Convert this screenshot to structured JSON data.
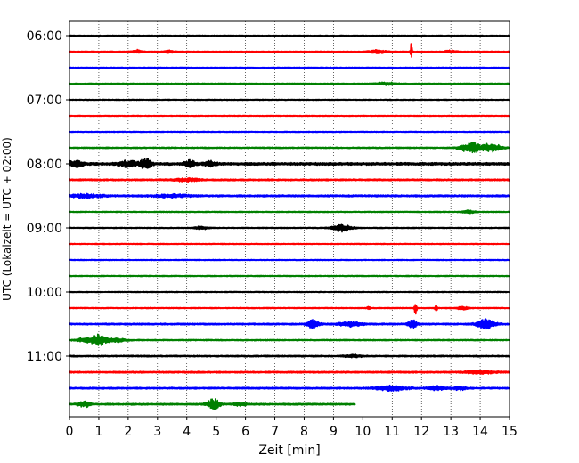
{
  "chart_data": {
    "type": "line",
    "title": "",
    "xlabel": "Zeit  [min]",
    "ylabel": "UTC (Lokalzeit = UTC + 02:00)",
    "xlim": [
      0,
      15
    ],
    "x_ticks": [
      "0",
      "1",
      "2",
      "3",
      "4",
      "5",
      "6",
      "7",
      "8",
      "9",
      "10",
      "11",
      "12",
      "13",
      "14",
      "15"
    ],
    "y_tick_labels": [
      "06:00",
      "07:00",
      "08:00",
      "09:00",
      "10:00",
      "11:00"
    ],
    "grid": "vertical dotted",
    "trace_interval_minutes": 15,
    "colors": [
      "#000000",
      "#ff0000",
      "#0000ff",
      "#008000"
    ],
    "series": [
      {
        "start": "06:00",
        "end_min": 15,
        "amp": 0.5,
        "events": []
      },
      {
        "start": "06:15",
        "end_min": 15,
        "amp": 0.55,
        "events": [
          {
            "t": 2.3,
            "a": 2.0,
            "w": 0.15
          },
          {
            "t": 3.4,
            "a": 1.6,
            "w": 0.15
          },
          {
            "t": 10.5,
            "a": 1.8,
            "w": 0.3
          },
          {
            "t": 11.65,
            "a": 10,
            "w": 0.03
          },
          {
            "t": 13.0,
            "a": 1.6,
            "w": 0.2
          }
        ]
      },
      {
        "start": "06:30",
        "end_min": 15,
        "amp": 0.55,
        "events": []
      },
      {
        "start": "06:45",
        "end_min": 15,
        "amp": 0.55,
        "events": [
          {
            "t": 10.8,
            "a": 1.6,
            "w": 0.3
          }
        ]
      },
      {
        "start": "07:00",
        "end_min": 15,
        "amp": 0.55,
        "events": []
      },
      {
        "start": "07:15",
        "end_min": 15,
        "amp": 0.5,
        "events": []
      },
      {
        "start": "07:30",
        "end_min": 15,
        "amp": 0.55,
        "events": []
      },
      {
        "start": "07:45",
        "end_min": 15,
        "amp": 0.7,
        "events": [
          {
            "t": 13.7,
            "a": 6,
            "w": 0.35
          },
          {
            "t": 14.4,
            "a": 5,
            "w": 0.3
          }
        ]
      },
      {
        "start": "08:00",
        "end_min": 15,
        "amp": 1.4,
        "events": [
          {
            "t": 0.2,
            "a": 3,
            "w": 0.3
          },
          {
            "t": 2.0,
            "a": 3,
            "w": 0.3
          },
          {
            "t": 2.6,
            "a": 5,
            "w": 0.2
          },
          {
            "t": 4.1,
            "a": 3.5,
            "w": 0.2
          },
          {
            "t": 4.8,
            "a": 2.5,
            "w": 0.2
          }
        ]
      },
      {
        "start": "08:15",
        "end_min": 15,
        "amp": 0.9,
        "events": [
          {
            "t": 4.0,
            "a": 1.5,
            "w": 0.4
          }
        ]
      },
      {
        "start": "08:30",
        "end_min": 15,
        "amp": 1.0,
        "events": [
          {
            "t": 0.6,
            "a": 1.6,
            "w": 0.6
          },
          {
            "t": 3.5,
            "a": 1.4,
            "w": 0.6
          }
        ]
      },
      {
        "start": "08:45",
        "end_min": 15,
        "amp": 0.6,
        "events": [
          {
            "t": 13.6,
            "a": 1.5,
            "w": 0.2
          }
        ]
      },
      {
        "start": "09:00",
        "end_min": 15,
        "amp": 0.6,
        "events": [
          {
            "t": 4.5,
            "a": 1.6,
            "w": 0.2
          },
          {
            "t": 9.3,
            "a": 4,
            "w": 0.3
          }
        ]
      },
      {
        "start": "09:15",
        "end_min": 15,
        "amp": 0.55,
        "events": []
      },
      {
        "start": "09:30",
        "end_min": 15,
        "amp": 0.55,
        "events": []
      },
      {
        "start": "09:45",
        "end_min": 15,
        "amp": 0.6,
        "events": []
      },
      {
        "start": "10:00",
        "end_min": 15,
        "amp": 0.55,
        "events": []
      },
      {
        "start": "10:15",
        "end_min": 15,
        "amp": 0.6,
        "events": [
          {
            "t": 10.2,
            "a": 2.0,
            "w": 0.05
          },
          {
            "t": 11.8,
            "a": 9,
            "w": 0.04
          },
          {
            "t": 12.5,
            "a": 5,
            "w": 0.04
          },
          {
            "t": 13.4,
            "a": 1.5,
            "w": 0.2
          }
        ]
      },
      {
        "start": "10:30",
        "end_min": 15,
        "amp": 0.9,
        "events": [
          {
            "t": 8.3,
            "a": 4.5,
            "w": 0.2
          },
          {
            "t": 9.6,
            "a": 2.5,
            "w": 0.4
          },
          {
            "t": 11.7,
            "a": 4,
            "w": 0.15
          },
          {
            "t": 14.2,
            "a": 5,
            "w": 0.3
          }
        ]
      },
      {
        "start": "10:45",
        "end_min": 15,
        "amp": 0.7,
        "events": [
          {
            "t": 0.5,
            "a": 2,
            "w": 0.3
          },
          {
            "t": 1.0,
            "a": 6,
            "w": 0.25
          },
          {
            "t": 1.6,
            "a": 2,
            "w": 0.3
          }
        ]
      },
      {
        "start": "11:00",
        "end_min": 15,
        "amp": 0.8,
        "events": [
          {
            "t": 9.7,
            "a": 1.5,
            "w": 0.3
          }
        ]
      },
      {
        "start": "11:15",
        "end_min": 15,
        "amp": 0.9,
        "events": [
          {
            "t": 14.0,
            "a": 1.5,
            "w": 0.5
          }
        ]
      },
      {
        "start": "11:30",
        "end_min": 15,
        "amp": 0.9,
        "events": [
          {
            "t": 11.0,
            "a": 2.5,
            "w": 0.5
          },
          {
            "t": 12.5,
            "a": 2.0,
            "w": 0.3
          },
          {
            "t": 13.3,
            "a": 2.0,
            "w": 0.2
          }
        ]
      },
      {
        "start": "11:45",
        "end_min": 9.75,
        "amp": 0.9,
        "events": [
          {
            "t": 0.5,
            "a": 3,
            "w": 0.2
          },
          {
            "t": 4.9,
            "a": 6,
            "w": 0.2
          },
          {
            "t": 5.8,
            "a": 1.8,
            "w": 0.2
          }
        ]
      }
    ]
  }
}
